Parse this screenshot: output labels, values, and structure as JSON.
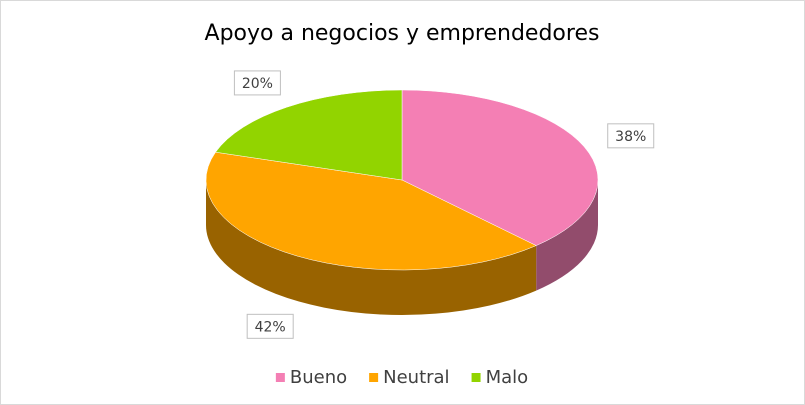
{
  "chart_data": {
    "type": "pie",
    "title": "Apoyo a negocios y emprendedores",
    "categories": [
      "Bueno",
      "Neutral",
      "Malo"
    ],
    "values": [
      38,
      42,
      20
    ],
    "value_labels": [
      "38%",
      "42%",
      "20%"
    ],
    "colors": [
      "#f47fb4",
      "#ffa500",
      "#92d400"
    ],
    "legend": "bottom"
  }
}
